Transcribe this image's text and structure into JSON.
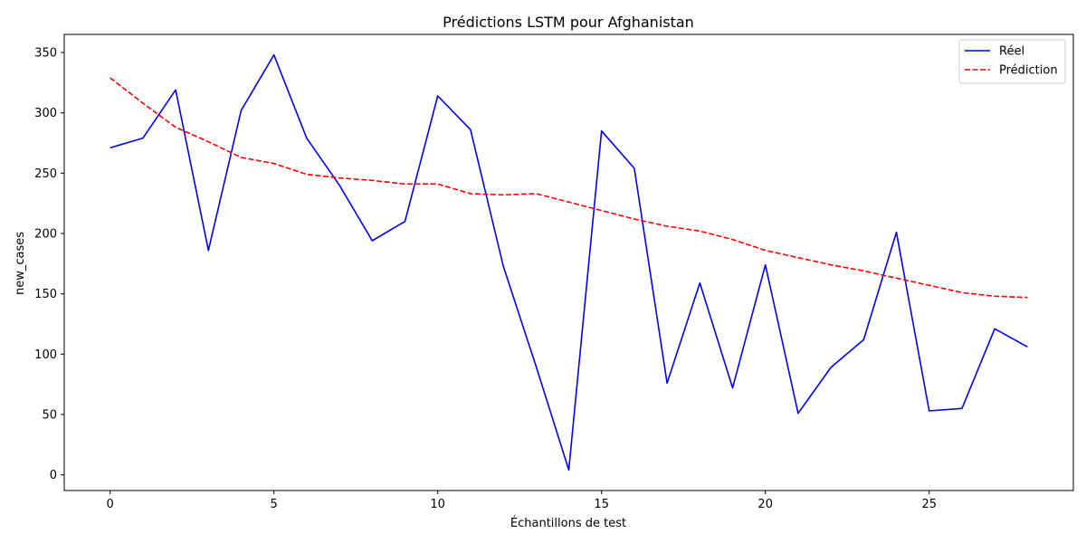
{
  "chart_data": {
    "type": "line",
    "title": "Prédictions LSTM pour Afghanistan",
    "xlabel": "Échantillons de test",
    "ylabel": "new_cases",
    "xlim": [
      -1.4,
      29.4
    ],
    "ylim": [
      -13,
      365
    ],
    "xticks": [
      0,
      5,
      10,
      15,
      20,
      25
    ],
    "yticks": [
      0,
      50,
      100,
      150,
      200,
      250,
      300,
      350
    ],
    "grid": false,
    "legend_position": "top-right",
    "x": [
      0,
      1,
      2,
      3,
      4,
      5,
      6,
      7,
      8,
      9,
      10,
      11,
      12,
      13,
      14,
      15,
      16,
      17,
      18,
      19,
      20,
      21,
      22,
      23,
      24,
      25,
      26,
      27,
      28
    ],
    "series": [
      {
        "name": "Réel",
        "color": "#0000ff",
        "style": "solid",
        "values": [
          271,
          279,
          319,
          186,
          302,
          348,
          279,
          240,
          194,
          210,
          314,
          286,
          173,
          90,
          4,
          285,
          254,
          76,
          159,
          72,
          174,
          51,
          89,
          112,
          201,
          53,
          55,
          121,
          106
        ]
      },
      {
        "name": "Prédiction",
        "color": "#ff0000",
        "style": "dashed",
        "values": [
          329,
          308,
          288,
          276,
          263,
          258,
          249,
          246,
          244,
          241,
          241,
          233,
          232,
          233,
          226,
          219,
          212,
          206,
          202,
          195,
          186,
          180,
          174,
          169,
          163,
          157,
          151,
          148,
          147
        ]
      }
    ]
  }
}
